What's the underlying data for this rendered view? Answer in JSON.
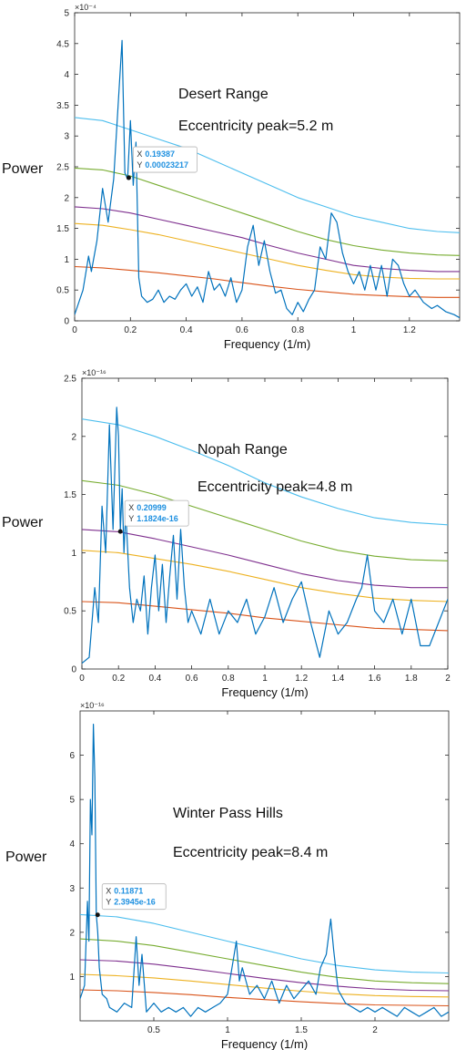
{
  "chart_data": [
    {
      "type": "line",
      "title": "Desert Range",
      "subtitle": "Eccentricity peak=5.2 m",
      "xlabel": "Frequency (1/m)",
      "ylabel": "Power",
      "exponent_label": "×10⁻⁴",
      "xlim": [
        0,
        1.38
      ],
      "ylim": [
        0,
        5
      ],
      "xticks": [
        0,
        0.2,
        0.4,
        0.6,
        0.8,
        1,
        1.2
      ],
      "xtick_labels": [
        "0",
        "0.2",
        "0.4",
        "0.6",
        "0.8",
        "1",
        "1.2"
      ],
      "yticks": [
        0,
        0.5,
        1,
        1.5,
        2,
        2.5,
        3,
        3.5,
        4,
        4.5,
        5
      ],
      "ytick_labels": [
        "0",
        "0.5",
        "1",
        "1.5",
        "2",
        "2.5",
        "3",
        "3.5",
        "4",
        "4.5",
        "5"
      ],
      "datatip": {
        "x": 0.19387,
        "y": 2.3217,
        "x_text": "0.19387",
        "y_text": "0.00023217"
      },
      "series": [
        {
          "color": "#0072BD",
          "x": [
            0,
            0.03,
            0.05,
            0.06,
            0.08,
            0.1,
            0.12,
            0.14,
            0.16,
            0.17,
            0.18,
            0.19,
            0.2,
            0.21,
            0.22,
            0.23,
            0.24,
            0.26,
            0.28,
            0.3,
            0.32,
            0.34,
            0.36,
            0.38,
            0.4,
            0.42,
            0.44,
            0.46,
            0.48,
            0.5,
            0.52,
            0.54,
            0.56,
            0.58,
            0.6,
            0.62,
            0.64,
            0.66,
            0.68,
            0.7,
            0.72,
            0.74,
            0.76,
            0.78,
            0.8,
            0.82,
            0.84,
            0.86,
            0.88,
            0.9,
            0.92,
            0.94,
            0.96,
            0.98,
            1,
            1.02,
            1.04,
            1.06,
            1.08,
            1.1,
            1.12,
            1.14,
            1.16,
            1.18,
            1.2,
            1.22,
            1.25,
            1.28,
            1.3,
            1.33,
            1.36,
            1.38
          ],
          "y": [
            0.1,
            0.5,
            1.05,
            0.8,
            1.3,
            2.15,
            1.6,
            2.3,
            3.8,
            4.55,
            2.4,
            2.3,
            3.25,
            2.2,
            2.9,
            0.7,
            0.4,
            0.3,
            0.35,
            0.5,
            0.3,
            0.4,
            0.35,
            0.5,
            0.6,
            0.4,
            0.55,
            0.3,
            0.8,
            0.5,
            0.6,
            0.4,
            0.7,
            0.3,
            0.5,
            1.2,
            1.55,
            0.9,
            1.3,
            0.8,
            0.45,
            0.5,
            0.2,
            0.1,
            0.3,
            0.15,
            0.35,
            0.5,
            1.2,
            1.0,
            1.75,
            1.6,
            1.1,
            0.8,
            0.6,
            0.8,
            0.5,
            0.9,
            0.5,
            0.9,
            0.4,
            1.0,
            0.9,
            0.6,
            0.4,
            0.5,
            0.3,
            0.2,
            0.25,
            0.15,
            0.1,
            0.05
          ]
        },
        {
          "color": "#4DBEEE",
          "x": [
            0,
            0.1,
            0.2,
            0.3,
            0.4,
            0.5,
            0.6,
            0.7,
            0.8,
            0.9,
            1,
            1.1,
            1.2,
            1.3,
            1.38
          ],
          "y": [
            3.3,
            3.25,
            3.1,
            2.95,
            2.8,
            2.6,
            2.4,
            2.2,
            2.0,
            1.85,
            1.7,
            1.6,
            1.5,
            1.45,
            1.43
          ]
        },
        {
          "color": "#77AC30",
          "x": [
            0,
            0.1,
            0.2,
            0.3,
            0.4,
            0.5,
            0.6,
            0.7,
            0.8,
            0.9,
            1,
            1.1,
            1.2,
            1.3,
            1.38
          ],
          "y": [
            2.48,
            2.45,
            2.35,
            2.2,
            2.05,
            1.9,
            1.75,
            1.6,
            1.45,
            1.32,
            1.22,
            1.15,
            1.1,
            1.07,
            1.06
          ]
        },
        {
          "color": "#7E2F8E",
          "x": [
            0,
            0.1,
            0.2,
            0.3,
            0.4,
            0.5,
            0.6,
            0.7,
            0.8,
            0.9,
            1,
            1.1,
            1.2,
            1.3,
            1.38
          ],
          "y": [
            1.85,
            1.82,
            1.75,
            1.65,
            1.55,
            1.45,
            1.35,
            1.22,
            1.1,
            1.0,
            0.9,
            0.85,
            0.82,
            0.8,
            0.8
          ]
        },
        {
          "color": "#EDB120",
          "x": [
            0,
            0.1,
            0.2,
            0.3,
            0.4,
            0.5,
            0.6,
            0.7,
            0.8,
            0.9,
            1,
            1.1,
            1.2,
            1.3,
            1.38
          ],
          "y": [
            1.58,
            1.55,
            1.48,
            1.4,
            1.3,
            1.2,
            1.1,
            1.0,
            0.9,
            0.82,
            0.75,
            0.71,
            0.69,
            0.68,
            0.68
          ]
        },
        {
          "color": "#D95319",
          "x": [
            0,
            0.1,
            0.2,
            0.3,
            0.4,
            0.5,
            0.6,
            0.7,
            0.8,
            0.9,
            1,
            1.1,
            1.2,
            1.3,
            1.38
          ],
          "y": [
            0.88,
            0.86,
            0.82,
            0.78,
            0.73,
            0.68,
            0.62,
            0.56,
            0.51,
            0.47,
            0.43,
            0.41,
            0.39,
            0.38,
            0.38
          ]
        }
      ]
    },
    {
      "type": "line",
      "title": "Nopah Range",
      "subtitle": "Eccentricity peak=4.8 m",
      "xlabel": "Frequency (1/m)",
      "ylabel": "Power",
      "exponent_label": "×10⁻¹⁶",
      "xlim": [
        0,
        2
      ],
      "ylim": [
        0,
        2.5
      ],
      "xticks": [
        0,
        0.2,
        0.4,
        0.6,
        0.8,
        1,
        1.2,
        1.4,
        1.6,
        1.8,
        2
      ],
      "xtick_labels": [
        "0",
        "0.2",
        "0.4",
        "0.6",
        "0.8",
        "1",
        "1.2",
        "1.4",
        "1.6",
        "1.8",
        "2"
      ],
      "yticks": [
        0,
        0.5,
        1,
        1.5,
        2,
        2.5
      ],
      "ytick_labels": [
        "0",
        "0.5",
        "1",
        "1.5",
        "2",
        "2.5"
      ],
      "datatip": {
        "x": 0.20999,
        "y": 1.1824,
        "x_text": "0.20999",
        "y_text": "1.1824e-16"
      },
      "series": [
        {
          "color": "#0072BD",
          "x": [
            0,
            0.04,
            0.07,
            0.09,
            0.11,
            0.13,
            0.15,
            0.17,
            0.19,
            0.2,
            0.21,
            0.22,
            0.23,
            0.24,
            0.26,
            0.28,
            0.3,
            0.32,
            0.34,
            0.36,
            0.38,
            0.4,
            0.42,
            0.44,
            0.46,
            0.48,
            0.5,
            0.52,
            0.54,
            0.56,
            0.58,
            0.6,
            0.65,
            0.7,
            0.75,
            0.8,
            0.85,
            0.9,
            0.95,
            1,
            1.05,
            1.1,
            1.15,
            1.2,
            1.25,
            1.3,
            1.35,
            1.4,
            1.45,
            1.5,
            1.53,
            1.56,
            1.6,
            1.65,
            1.7,
            1.75,
            1.8,
            1.85,
            1.9,
            1.95,
            2
          ],
          "y": [
            0.05,
            0.1,
            0.7,
            0.4,
            1.4,
            1.0,
            2.1,
            1.2,
            2.25,
            2.0,
            1.2,
            1.55,
            1.0,
            1.35,
            0.7,
            0.4,
            0.6,
            0.5,
            0.8,
            0.3,
            0.7,
            0.98,
            0.5,
            0.9,
            0.4,
            0.8,
            1.15,
            0.6,
            1.2,
            0.7,
            0.4,
            0.5,
            0.3,
            0.6,
            0.3,
            0.5,
            0.4,
            0.6,
            0.3,
            0.45,
            0.7,
            0.4,
            0.6,
            0.75,
            0.4,
            0.1,
            0.5,
            0.3,
            0.4,
            0.6,
            0.7,
            0.98,
            0.5,
            0.4,
            0.6,
            0.3,
            0.6,
            0.2,
            0.2,
            0.4,
            0.6
          ]
        },
        {
          "color": "#4DBEEE",
          "x": [
            0,
            0.2,
            0.4,
            0.6,
            0.8,
            1,
            1.2,
            1.4,
            1.6,
            1.8,
            2
          ],
          "y": [
            2.15,
            2.1,
            2.0,
            1.88,
            1.75,
            1.6,
            1.48,
            1.38,
            1.3,
            1.26,
            1.24
          ]
        },
        {
          "color": "#77AC30",
          "x": [
            0,
            0.2,
            0.4,
            0.6,
            0.8,
            1,
            1.2,
            1.4,
            1.6,
            1.8,
            2
          ],
          "y": [
            1.62,
            1.58,
            1.5,
            1.4,
            1.3,
            1.2,
            1.1,
            1.02,
            0.97,
            0.94,
            0.93
          ]
        },
        {
          "color": "#7E2F8E",
          "x": [
            0,
            0.2,
            0.4,
            0.6,
            0.8,
            1,
            1.2,
            1.4,
            1.6,
            1.8,
            2
          ],
          "y": [
            1.2,
            1.18,
            1.12,
            1.05,
            0.98,
            0.9,
            0.82,
            0.76,
            0.72,
            0.7,
            0.7
          ]
        },
        {
          "color": "#EDB120",
          "x": [
            0,
            0.2,
            0.4,
            0.6,
            0.8,
            1,
            1.2,
            1.4,
            1.6,
            1.8,
            2
          ],
          "y": [
            1.02,
            1.0,
            0.95,
            0.9,
            0.84,
            0.77,
            0.7,
            0.65,
            0.61,
            0.59,
            0.58
          ]
        },
        {
          "color": "#D95319",
          "x": [
            0,
            0.2,
            0.4,
            0.6,
            0.8,
            1,
            1.2,
            1.4,
            1.6,
            1.8,
            2
          ],
          "y": [
            0.58,
            0.57,
            0.54,
            0.51,
            0.48,
            0.44,
            0.41,
            0.38,
            0.35,
            0.34,
            0.33
          ]
        }
      ]
    },
    {
      "type": "line",
      "title": "Winter Pass Hills",
      "subtitle": "Eccentricity peak=8.4 m",
      "xlabel": "Frequency (1/m)",
      "ylabel": "Power",
      "exponent_label": "×10⁻¹⁶",
      "xlim": [
        0,
        2.5
      ],
      "ylim": [
        0,
        7
      ],
      "xticks": [
        0.5,
        1,
        1.5,
        2
      ],
      "xtick_labels": [
        "0.5",
        "1",
        "1.5",
        "2"
      ],
      "yticks": [
        1,
        2,
        3,
        4,
        5,
        6
      ],
      "ytick_labels": [
        "1",
        "2",
        "3",
        "4",
        "5",
        "6"
      ],
      "datatip": {
        "x": 0.11871,
        "y": 2.3945,
        "x_text": "0.11871",
        "y_text": "2.3945e-16"
      },
      "series": [
        {
          "color": "#0072BD",
          "x": [
            0,
            0.03,
            0.05,
            0.06,
            0.07,
            0.08,
            0.09,
            0.1,
            0.11,
            0.12,
            0.13,
            0.15,
            0.18,
            0.2,
            0.25,
            0.3,
            0.35,
            0.38,
            0.4,
            0.42,
            0.45,
            0.5,
            0.55,
            0.6,
            0.65,
            0.7,
            0.75,
            0.8,
            0.85,
            0.9,
            0.95,
            1,
            1.03,
            1.06,
            1.08,
            1.1,
            1.15,
            1.2,
            1.25,
            1.3,
            1.35,
            1.4,
            1.45,
            1.5,
            1.55,
            1.6,
            1.63,
            1.67,
            1.7,
            1.72,
            1.75,
            1.8,
            1.85,
            1.9,
            1.95,
            2,
            2.05,
            2.1,
            2.15,
            2.2,
            2.25,
            2.3,
            2.35,
            2.4,
            2.45,
            2.5
          ],
          "y": [
            0.5,
            0.8,
            2.7,
            1.8,
            5.0,
            4.2,
            6.7,
            5.5,
            2.4,
            2.0,
            1.2,
            0.6,
            0.5,
            0.3,
            0.2,
            0.4,
            0.3,
            1.9,
            0.8,
            1.5,
            0.2,
            0.4,
            0.2,
            0.3,
            0.2,
            0.3,
            0.1,
            0.3,
            0.2,
            0.3,
            0.4,
            0.6,
            1.2,
            1.8,
            0.9,
            1.2,
            0.6,
            0.8,
            0.5,
            0.9,
            0.4,
            0.8,
            0.5,
            0.7,
            0.9,
            0.6,
            1.2,
            1.5,
            2.3,
            1.6,
            0.7,
            0.4,
            0.3,
            0.2,
            0.3,
            0.2,
            0.3,
            0.2,
            0.1,
            0.3,
            0.2,
            0.1,
            0.2,
            0.3,
            0.1,
            0.2
          ]
        },
        {
          "color": "#4DBEEE",
          "x": [
            0,
            0.25,
            0.5,
            0.75,
            1,
            1.25,
            1.5,
            1.75,
            2,
            2.25,
            2.5
          ],
          "y": [
            2.4,
            2.35,
            2.2,
            2.0,
            1.8,
            1.6,
            1.4,
            1.25,
            1.15,
            1.1,
            1.08
          ]
        },
        {
          "color": "#77AC30",
          "x": [
            0,
            0.25,
            0.5,
            0.75,
            1,
            1.25,
            1.5,
            1.75,
            2,
            2.25,
            2.5
          ],
          "y": [
            1.85,
            1.8,
            1.7,
            1.55,
            1.4,
            1.25,
            1.1,
            0.98,
            0.9,
            0.86,
            0.84
          ]
        },
        {
          "color": "#7E2F8E",
          "x": [
            0,
            0.25,
            0.5,
            0.75,
            1,
            1.25,
            1.5,
            1.75,
            2,
            2.25,
            2.5
          ],
          "y": [
            1.38,
            1.35,
            1.28,
            1.18,
            1.07,
            0.96,
            0.86,
            0.78,
            0.72,
            0.69,
            0.68
          ]
        },
        {
          "color": "#EDB120",
          "x": [
            0,
            0.25,
            0.5,
            0.75,
            1,
            1.25,
            1.5,
            1.75,
            2,
            2.25,
            2.5
          ],
          "y": [
            1.05,
            1.02,
            0.97,
            0.9,
            0.82,
            0.74,
            0.67,
            0.61,
            0.57,
            0.55,
            0.54
          ]
        },
        {
          "color": "#D95319",
          "x": [
            0,
            0.25,
            0.5,
            0.75,
            1,
            1.25,
            1.5,
            1.75,
            2,
            2.25,
            2.5
          ],
          "y": [
            0.7,
            0.68,
            0.64,
            0.59,
            0.53,
            0.48,
            0.43,
            0.39,
            0.36,
            0.35,
            0.34
          ]
        }
      ]
    }
  ]
}
